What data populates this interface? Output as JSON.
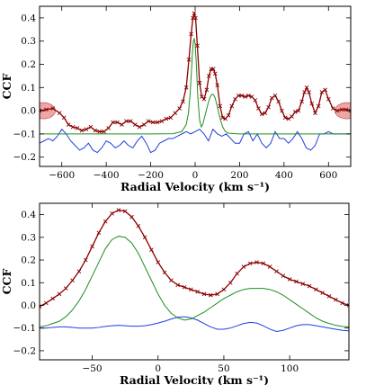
{
  "colors": {
    "ccf_observed": "#8b0000",
    "ccf_observed_band": "#e88a8a",
    "gaussian_fit": "#1f8f1f",
    "residual": "#1f3fdf",
    "axes": "#000000"
  },
  "chart_data": [
    {
      "type": "line",
      "xlabel": "Radial Velocity (km s⁻¹)",
      "ylabel": "CCF",
      "xlim": [
        -700,
        700
      ],
      "ylim": [
        -0.24,
        0.45
      ],
      "xticks": [
        -600,
        -400,
        -200,
        0,
        200,
        400,
        600
      ],
      "yticks": [
        -0.2,
        -0.1,
        0.0,
        0.1,
        0.2,
        0.3,
        0.4
      ],
      "shaded_edge_regions": [
        [
          -700,
          -600
        ],
        [
          600,
          700
        ]
      ],
      "grid": false,
      "series": [
        {
          "role": "observed",
          "style": "red line with cross markers",
          "x": [
            -700,
            -670,
            -640,
            -610,
            -590,
            -570,
            -550,
            -530,
            -510,
            -490,
            -470,
            -450,
            -430,
            -410,
            -390,
            -370,
            -350,
            -330,
            -310,
            -290,
            -270,
            -250,
            -230,
            -210,
            -190,
            -170,
            -150,
            -130,
            -110,
            -90,
            -70,
            -55,
            -40,
            -28,
            -18,
            -10,
            -4,
            2,
            10,
            20,
            30,
            40,
            52,
            62,
            72,
            82,
            90,
            100,
            112,
            124,
            136,
            150,
            165,
            180,
            195,
            210,
            225,
            240,
            255,
            270,
            285,
            300,
            315,
            330,
            345,
            360,
            375,
            390,
            405,
            420,
            435,
            450,
            465,
            480,
            492,
            502,
            512,
            525,
            540,
            555,
            570,
            585,
            600,
            620,
            640,
            660,
            680,
            700
          ],
          "y": [
            0.0,
            0.005,
            0.01,
            -0.01,
            -0.03,
            -0.06,
            -0.07,
            -0.075,
            -0.085,
            -0.08,
            -0.07,
            -0.085,
            -0.09,
            -0.09,
            -0.075,
            -0.05,
            -0.05,
            -0.06,
            -0.045,
            -0.045,
            -0.06,
            -0.07,
            -0.06,
            -0.045,
            -0.05,
            -0.05,
            -0.045,
            -0.035,
            -0.03,
            -0.01,
            0.01,
            0.04,
            0.1,
            0.22,
            0.33,
            0.4,
            0.42,
            0.4,
            0.28,
            0.12,
            0.06,
            0.05,
            0.09,
            0.15,
            0.18,
            0.18,
            0.16,
            0.11,
            0.02,
            -0.03,
            -0.035,
            -0.02,
            0.02,
            0.05,
            0.065,
            0.065,
            0.06,
            0.065,
            0.06,
            0.045,
            0.01,
            -0.015,
            -0.01,
            0.015,
            0.055,
            0.065,
            0.04,
            0.0,
            -0.03,
            -0.035,
            -0.025,
            -0.005,
            0.0,
            0.04,
            0.08,
            0.1,
            0.08,
            0.03,
            -0.01,
            0.02,
            0.08,
            0.09,
            0.05,
            0.01,
            0.0,
            0.005,
            0.005,
            0.0
          ]
        },
        {
          "role": "gaussian_fit",
          "style": "green line",
          "x": [
            -700,
            -200,
            -100,
            -60,
            -40,
            -30,
            -22,
            -16,
            -12,
            -8,
            -4,
            0,
            6,
            12,
            20,
            28,
            34,
            42,
            50,
            58,
            66,
            74,
            82,
            90,
            98,
            106,
            114,
            124,
            136,
            150,
            200,
            700
          ],
          "y": [
            -0.1,
            -0.1,
            -0.099,
            -0.09,
            -0.06,
            -0.01,
            0.08,
            0.18,
            0.25,
            0.3,
            0.31,
            0.29,
            0.19,
            0.06,
            -0.04,
            -0.07,
            -0.06,
            -0.03,
            0.0,
            0.03,
            0.055,
            0.07,
            0.07,
            0.055,
            0.025,
            -0.01,
            -0.04,
            -0.07,
            -0.09,
            -0.097,
            -0.1,
            -0.1
          ]
        },
        {
          "role": "residual",
          "style": "blue line",
          "x": [
            -700,
            -680,
            -660,
            -640,
            -620,
            -600,
            -580,
            -560,
            -540,
            -520,
            -500,
            -480,
            -460,
            -440,
            -420,
            -400,
            -380,
            -360,
            -340,
            -320,
            -300,
            -280,
            -260,
            -240,
            -220,
            -200,
            -180,
            -160,
            -140,
            -120,
            -100,
            -80,
            -60,
            -40,
            -20,
            0,
            20,
            40,
            60,
            80,
            100,
            120,
            140,
            160,
            180,
            200,
            220,
            240,
            260,
            280,
            300,
            320,
            340,
            360,
            380,
            400,
            420,
            440,
            460,
            480,
            500,
            520,
            540,
            560,
            580,
            600,
            620,
            640,
            660,
            680,
            700
          ],
          "y": [
            -0.14,
            -0.13,
            -0.12,
            -0.13,
            -0.11,
            -0.08,
            -0.1,
            -0.13,
            -0.15,
            -0.17,
            -0.16,
            -0.14,
            -0.17,
            -0.18,
            -0.16,
            -0.13,
            -0.14,
            -0.16,
            -0.15,
            -0.13,
            -0.15,
            -0.16,
            -0.13,
            -0.11,
            -0.14,
            -0.18,
            -0.17,
            -0.14,
            -0.13,
            -0.12,
            -0.12,
            -0.11,
            -0.1,
            -0.09,
            -0.1,
            -0.09,
            -0.08,
            -0.1,
            -0.13,
            -0.08,
            -0.1,
            -0.11,
            -0.1,
            -0.12,
            -0.14,
            -0.14,
            -0.1,
            -0.09,
            -0.13,
            -0.1,
            -0.14,
            -0.16,
            -0.14,
            -0.09,
            -0.12,
            -0.12,
            -0.14,
            -0.12,
            -0.09,
            -0.12,
            -0.16,
            -0.17,
            -0.15,
            -0.1,
            -0.1,
            -0.09,
            -0.1,
            -0.1,
            -0.1,
            -0.1,
            -0.1
          ]
        }
      ]
    },
    {
      "type": "line",
      "xlabel": "Radial Velocity (km s⁻¹)",
      "ylabel": "CCF",
      "xlim": [
        -90,
        145
      ],
      "ylim": [
        -0.24,
        0.45
      ],
      "xticks": [
        -50,
        0,
        50,
        100
      ],
      "yticks": [
        -0.2,
        -0.1,
        0.0,
        0.1,
        0.2,
        0.3,
        0.4
      ],
      "grid": false,
      "series": [
        {
          "role": "observed",
          "style": "red line with cross markers",
          "x": [
            -90,
            -85,
            -80,
            -75,
            -70,
            -65,
            -60,
            -55,
            -50,
            -45,
            -40,
            -35,
            -30,
            -25,
            -20,
            -15,
            -10,
            -5,
            0,
            5,
            10,
            15,
            20,
            25,
            30,
            35,
            40,
            45,
            50,
            55,
            60,
            65,
            70,
            75,
            80,
            85,
            90,
            95,
            100,
            105,
            110,
            115,
            120,
            125,
            130,
            135,
            140,
            145
          ],
          "y": [
            -0.005,
            0.01,
            0.03,
            0.05,
            0.075,
            0.11,
            0.15,
            0.2,
            0.26,
            0.32,
            0.37,
            0.405,
            0.42,
            0.415,
            0.39,
            0.35,
            0.3,
            0.245,
            0.19,
            0.145,
            0.11,
            0.09,
            0.08,
            0.07,
            0.06,
            0.05,
            0.045,
            0.05,
            0.07,
            0.1,
            0.14,
            0.17,
            0.185,
            0.19,
            0.185,
            0.17,
            0.15,
            0.13,
            0.115,
            0.105,
            0.095,
            0.085,
            0.07,
            0.055,
            0.04,
            0.025,
            0.01,
            0.0
          ]
        },
        {
          "role": "gaussian_fit",
          "style": "green line",
          "x": [
            -90,
            -85,
            -80,
            -75,
            -70,
            -65,
            -60,
            -55,
            -50,
            -45,
            -40,
            -35,
            -30,
            -25,
            -20,
            -15,
            -10,
            -5,
            0,
            5,
            10,
            15,
            20,
            25,
            30,
            35,
            40,
            45,
            50,
            55,
            60,
            65,
            70,
            75,
            80,
            85,
            90,
            95,
            100,
            105,
            110,
            115,
            120,
            125,
            130,
            135,
            140,
            145
          ],
          "y": [
            -0.095,
            -0.09,
            -0.08,
            -0.07,
            -0.05,
            -0.02,
            0.02,
            0.07,
            0.13,
            0.19,
            0.25,
            0.29,
            0.305,
            0.3,
            0.275,
            0.23,
            0.17,
            0.11,
            0.05,
            0.0,
            -0.035,
            -0.055,
            -0.065,
            -0.06,
            -0.045,
            -0.03,
            -0.01,
            0.01,
            0.03,
            0.045,
            0.06,
            0.07,
            0.075,
            0.075,
            0.075,
            0.07,
            0.06,
            0.045,
            0.025,
            0.005,
            -0.015,
            -0.035,
            -0.055,
            -0.07,
            -0.08,
            -0.088,
            -0.093,
            -0.095
          ]
        },
        {
          "role": "residual",
          "style": "blue line",
          "x": [
            -90,
            -85,
            -80,
            -75,
            -70,
            -65,
            -60,
            -55,
            -50,
            -45,
            -40,
            -35,
            -30,
            -25,
            -20,
            -15,
            -10,
            -5,
            0,
            5,
            10,
            15,
            20,
            25,
            30,
            35,
            40,
            45,
            50,
            55,
            60,
            65,
            70,
            75,
            80,
            85,
            90,
            95,
            100,
            105,
            110,
            115,
            120,
            125,
            130,
            135,
            140,
            145
          ],
          "y": [
            -0.1,
            -0.1,
            -0.097,
            -0.095,
            -0.095,
            -0.097,
            -0.1,
            -0.1,
            -0.1,
            -0.097,
            -0.093,
            -0.09,
            -0.088,
            -0.09,
            -0.092,
            -0.092,
            -0.09,
            -0.085,
            -0.078,
            -0.07,
            -0.06,
            -0.052,
            -0.05,
            -0.055,
            -0.065,
            -0.08,
            -0.095,
            -0.105,
            -0.105,
            -0.1,
            -0.09,
            -0.08,
            -0.075,
            -0.078,
            -0.09,
            -0.105,
            -0.115,
            -0.11,
            -0.1,
            -0.09,
            -0.085,
            -0.085,
            -0.09,
            -0.095,
            -0.1,
            -0.105,
            -0.11,
            -0.112
          ]
        }
      ]
    }
  ]
}
